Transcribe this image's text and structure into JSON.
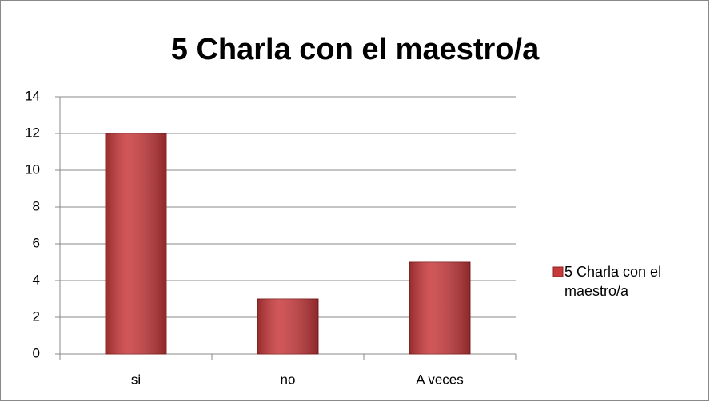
{
  "chart_data": {
    "type": "bar",
    "title": "5  Charla con el maestro/a",
    "categories": [
      "si",
      "no",
      "A veces"
    ],
    "series": [
      {
        "name": "5  Charla con el maestro/a",
        "color": "#c8393b",
        "values": [
          12,
          3,
          5
        ]
      }
    ],
    "ylim": [
      0,
      14
    ],
    "yticks": [
      0,
      2,
      4,
      6,
      8,
      10,
      12,
      14
    ],
    "grid": true,
    "legend": "right"
  }
}
